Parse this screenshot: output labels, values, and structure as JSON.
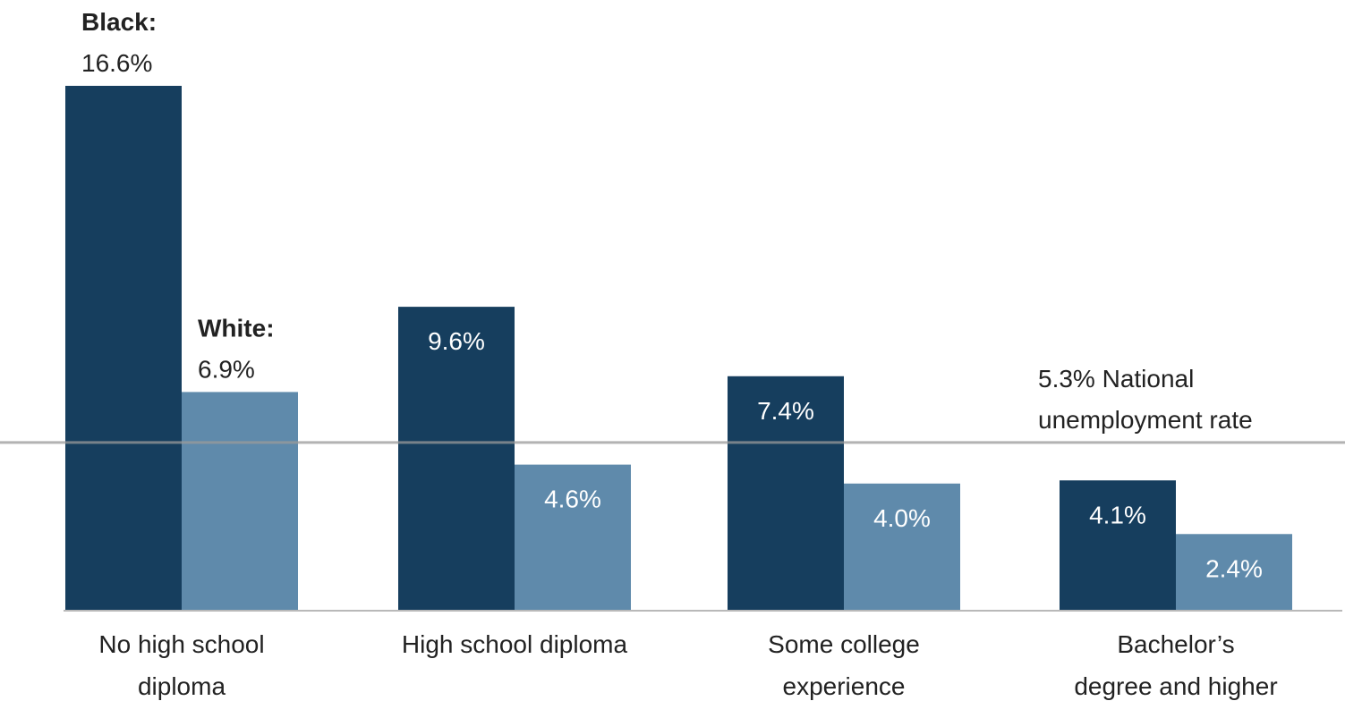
{
  "chart_data": {
    "type": "bar",
    "categories": [
      [
        "No high school",
        "diploma"
      ],
      [
        "High school diploma"
      ],
      [
        "Some college",
        "experience"
      ],
      [
        "Bachelor’s",
        "degree and higher"
      ]
    ],
    "series": [
      {
        "name": "Black:",
        "color": "#163e5e",
        "values": [
          16.6,
          9.6,
          7.4,
          4.1
        ],
        "labels": [
          "16.6%",
          "9.6%",
          "7.4%",
          "4.1%"
        ]
      },
      {
        "name": "White:",
        "color": "#5f8aab",
        "values": [
          6.9,
          4.6,
          4.0,
          2.4
        ],
        "labels": [
          "6.9%",
          "4.6%",
          "4.0%",
          "2.4%"
        ]
      }
    ],
    "reference_line": {
      "value": 5.3,
      "label_lines": [
        "5.3% National",
        "unemployment rate"
      ],
      "color": "#999999"
    },
    "ylim": [
      0,
      16.6
    ],
    "grid": false,
    "legend": "inline labels on first category",
    "title": "",
    "xlabel": "",
    "ylabel": ""
  }
}
